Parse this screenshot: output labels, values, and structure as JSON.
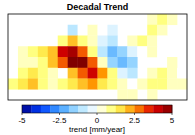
{
  "chart_data": {
    "type": "heatmap",
    "title": "Decadal Trend",
    "colorbar_label": "trend [mm/year]",
    "colorbar_range": [
      -5,
      5
    ],
    "colorbar_ticks": [
      -5,
      -2.5,
      0,
      2.5,
      5
    ],
    "cells": [
      [
        null,
        null,
        null,
        null,
        null,
        null,
        null,
        null,
        null,
        null,
        null,
        null,
        null,
        null,
        0.5,
        1,
        0.5,
        null
      ],
      [
        null,
        null,
        null,
        null,
        null,
        null,
        -1,
        0,
        0.5,
        0,
        -0.5,
        null,
        null,
        null,
        1,
        0.5,
        null,
        null
      ],
      [
        null,
        null,
        null,
        null,
        null,
        1,
        2,
        1,
        0.5,
        -0.5,
        -1,
        null,
        0.5,
        1,
        0.5,
        0,
        null,
        null
      ],
      [
        null,
        0.5,
        1,
        1.5,
        2,
        4,
        4.5,
        3,
        1,
        -1,
        -2,
        -1.5,
        -0.5,
        0,
        0.5,
        0,
        null,
        null
      ],
      [
        null,
        0.5,
        0.5,
        1,
        2,
        3,
        5,
        5,
        3,
        0.5,
        -1.5,
        -2,
        -1.5,
        null,
        null,
        0,
        0.5,
        null
      ],
      [
        null,
        1,
        1.5,
        1,
        0.5,
        null,
        2,
        3,
        4,
        2.5,
        1,
        -0.5,
        -1,
        null,
        0.5,
        1,
        0.5,
        0
      ],
      [
        1,
        1.5,
        2,
        1,
        0.5,
        1,
        1.5,
        2,
        2.5,
        1.5,
        1,
        0.5,
        0,
        0.5,
        1,
        1,
        0.5,
        0.5
      ],
      [
        null,
        null,
        null,
        null,
        null,
        null,
        null,
        null,
        null,
        null,
        null,
        0.5,
        0.5,
        null,
        0.5,
        null,
        null,
        null
      ]
    ]
  }
}
